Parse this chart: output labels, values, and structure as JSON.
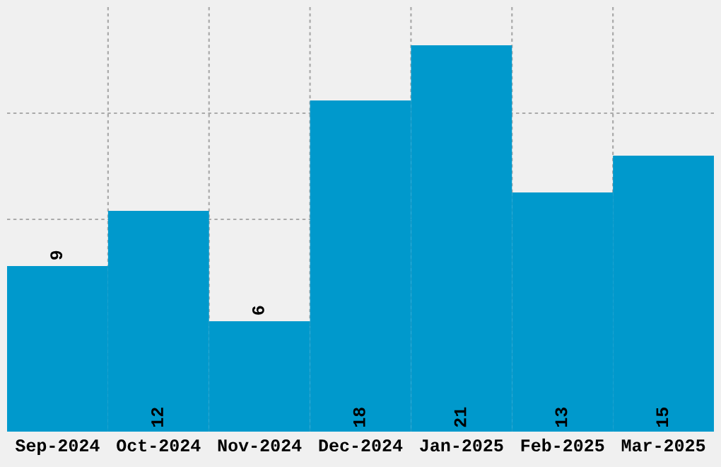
{
  "chart_data": {
    "type": "bar",
    "categories": [
      "Sep-2024",
      "Oct-2024",
      "Nov-2024",
      "Dec-2024",
      "Jan-2025",
      "Feb-2025",
      "Mar-2025"
    ],
    "values": [
      9,
      12,
      6,
      18,
      21,
      13,
      15
    ],
    "color": "#0099cc",
    "data_labels": true,
    "ylim": [
      0,
      23.08
    ],
    "yticks": [
      {
        "value": 5.77,
        "label": null
      },
      {
        "value": 11.54,
        "label": null
      },
      {
        "value": 17.31,
        "label": null
      }
    ],
    "grid": true,
    "tick_labels": "x"
  }
}
